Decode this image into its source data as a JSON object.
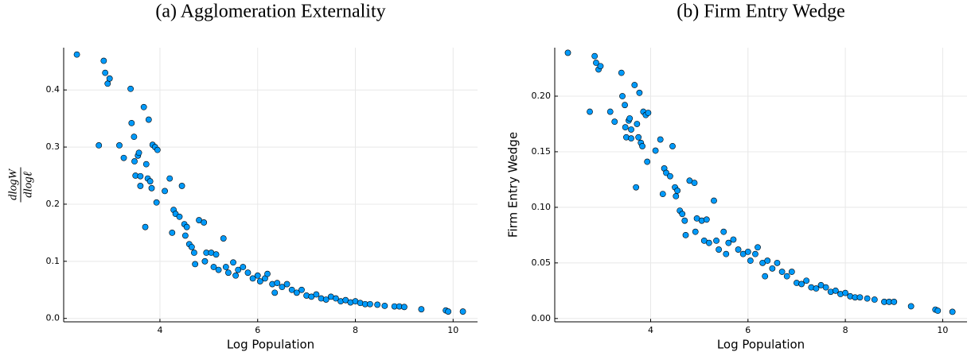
{
  "chart_data": [
    {
      "type": "scatter",
      "title": "(a) Agglomeration Externality",
      "xlabel": "Log Population",
      "ylabel": {
        "numerator": "dlogW",
        "denominator": "dlogℓ"
      },
      "color": "#009AFA",
      "grid": true,
      "xlim": [
        2.03,
        10.5
      ],
      "ylim": [
        -0.006,
        0.474
      ],
      "xticks": [
        4,
        6,
        8,
        10
      ],
      "yticks": [
        {
          "value": 0,
          "label": "0.0"
        },
        0.1,
        0.2,
        0.3,
        0.4
      ],
      "x": [
        2.3,
        2.75,
        2.85,
        2.88,
        2.93,
        2.97,
        3.17,
        3.26,
        3.4,
        3.42,
        3.47,
        3.48,
        3.5,
        3.55,
        3.57,
        3.6,
        3.6,
        3.67,
        3.7,
        3.72,
        3.75,
        3.77,
        3.8,
        3.83,
        3.85,
        3.9,
        3.93,
        3.95,
        4.1,
        4.2,
        4.25,
        4.28,
        4.32,
        4.4,
        4.45,
        4.5,
        4.52,
        4.55,
        4.6,
        4.65,
        4.7,
        4.72,
        4.8,
        4.9,
        4.92,
        4.95,
        5.05,
        5.1,
        5.15,
        5.2,
        5.3,
        5.35,
        5.4,
        5.5,
        5.55,
        5.6,
        5.7,
        5.8,
        5.9,
        6.0,
        6.05,
        6.15,
        6.2,
        6.3,
        6.35,
        6.4,
        6.5,
        6.6,
        6.7,
        6.8,
        6.9,
        7.0,
        7.1,
        7.2,
        7.3,
        7.4,
        7.5,
        7.6,
        7.7,
        7.8,
        7.9,
        8.0,
        8.1,
        8.2,
        8.3,
        8.45,
        8.6,
        8.8,
        8.9,
        9.0,
        9.35,
        9.85,
        9.9,
        10.2
      ],
      "values": [
        0.462,
        0.303,
        0.451,
        0.43,
        0.411,
        0.42,
        0.303,
        0.281,
        0.402,
        0.342,
        0.318,
        0.275,
        0.25,
        0.285,
        0.29,
        0.249,
        0.232,
        0.37,
        0.16,
        0.27,
        0.245,
        0.348,
        0.24,
        0.228,
        0.304,
        0.3,
        0.203,
        0.295,
        0.223,
        0.245,
        0.15,
        0.19,
        0.183,
        0.178,
        0.232,
        0.165,
        0.145,
        0.16,
        0.13,
        0.125,
        0.115,
        0.095,
        0.172,
        0.168,
        0.1,
        0.115,
        0.115,
        0.09,
        0.112,
        0.085,
        0.14,
        0.09,
        0.08,
        0.098,
        0.075,
        0.085,
        0.09,
        0.08,
        0.07,
        0.075,
        0.065,
        0.07,
        0.078,
        0.06,
        0.045,
        0.062,
        0.055,
        0.06,
        0.05,
        0.045,
        0.05,
        0.04,
        0.038,
        0.042,
        0.035,
        0.033,
        0.038,
        0.035,
        0.03,
        0.032,
        0.028,
        0.03,
        0.027,
        0.025,
        0.025,
        0.024,
        0.022,
        0.021,
        0.021,
        0.02,
        0.016,
        0.014,
        0.012,
        0.012
      ]
    },
    {
      "type": "scatter",
      "title": "(b) Firm Entry Wedge",
      "xlabel": "Log Population",
      "ylabel": "Firm Entry Wedge",
      "color": "#009AFA",
      "grid": true,
      "xlim": [
        2.03,
        10.5
      ],
      "ylim": [
        -0.003,
        0.2436
      ],
      "xticks": [
        4,
        6,
        8,
        10
      ],
      "yticks": [
        {
          "value": 0,
          "label": "0.00"
        },
        0.05,
        {
          "value": 0.1,
          "label": "0.10"
        },
        0.15,
        {
          "value": 0.2,
          "label": "0.20"
        }
      ],
      "x": [
        2.3,
        2.75,
        2.85,
        2.88,
        2.93,
        2.97,
        3.17,
        3.26,
        3.4,
        3.42,
        3.47,
        3.48,
        3.5,
        3.55,
        3.57,
        3.6,
        3.6,
        3.67,
        3.7,
        3.72,
        3.75,
        3.77,
        3.8,
        3.83,
        3.85,
        3.9,
        3.93,
        3.95,
        4.1,
        4.2,
        4.25,
        4.28,
        4.32,
        4.4,
        4.45,
        4.5,
        4.52,
        4.55,
        4.6,
        4.65,
        4.7,
        4.72,
        4.8,
        4.9,
        4.92,
        4.95,
        5.05,
        5.1,
        5.15,
        5.2,
        5.3,
        5.35,
        5.4,
        5.5,
        5.55,
        5.6,
        5.7,
        5.8,
        5.9,
        6.0,
        6.05,
        6.15,
        6.2,
        6.3,
        6.35,
        6.4,
        6.5,
        6.6,
        6.7,
        6.8,
        6.9,
        7.0,
        7.1,
        7.2,
        7.3,
        7.4,
        7.5,
        7.6,
        7.7,
        7.8,
        7.9,
        8.0,
        8.1,
        8.2,
        8.3,
        8.45,
        8.6,
        8.8,
        8.9,
        9.0,
        9.35,
        9.85,
        9.9,
        10.2
      ],
      "values": [
        0.239,
        0.186,
        0.236,
        0.23,
        0.224,
        0.227,
        0.186,
        0.177,
        0.221,
        0.2,
        0.192,
        0.172,
        0.163,
        0.178,
        0.18,
        0.17,
        0.162,
        0.21,
        0.118,
        0.175,
        0.163,
        0.203,
        0.158,
        0.155,
        0.186,
        0.183,
        0.141,
        0.185,
        0.151,
        0.161,
        0.112,
        0.135,
        0.131,
        0.128,
        0.155,
        0.118,
        0.11,
        0.115,
        0.097,
        0.094,
        0.088,
        0.075,
        0.124,
        0.122,
        0.078,
        0.09,
        0.088,
        0.07,
        0.089,
        0.068,
        0.106,
        0.07,
        0.062,
        0.078,
        0.058,
        0.068,
        0.071,
        0.062,
        0.058,
        0.06,
        0.052,
        0.058,
        0.064,
        0.05,
        0.038,
        0.052,
        0.045,
        0.05,
        0.042,
        0.038,
        0.042,
        0.032,
        0.031,
        0.034,
        0.028,
        0.027,
        0.03,
        0.028,
        0.024,
        0.025,
        0.022,
        0.023,
        0.02,
        0.019,
        0.019,
        0.018,
        0.017,
        0.015,
        0.015,
        0.015,
        0.011,
        0.008,
        0.007,
        0.006
      ]
    }
  ]
}
